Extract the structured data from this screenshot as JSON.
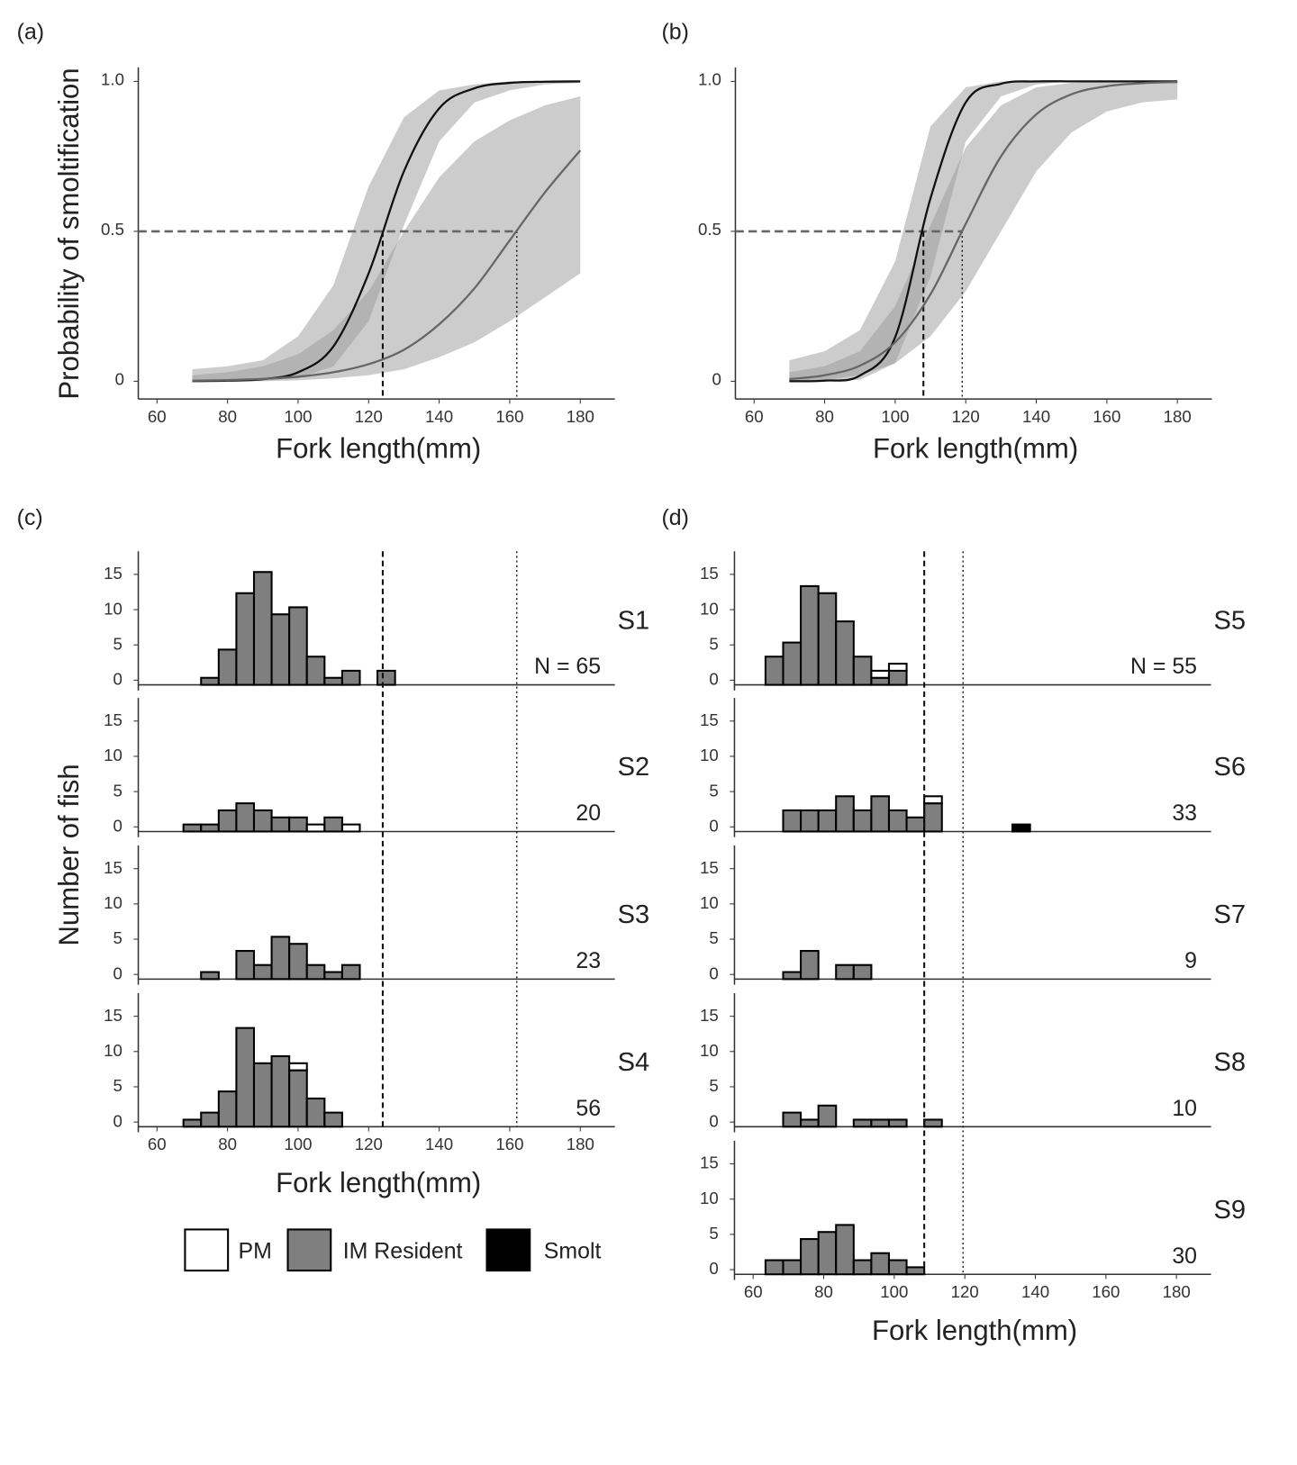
{
  "colors": {
    "im_resident": "#7f7f7f",
    "pm": "#ffffff",
    "smolt": "#000000",
    "band": "#9a9a9a",
    "fit_black": "#111111",
    "fit_gray": "#666666"
  },
  "chart_data": [
    {
      "type": "line",
      "panel_label": "(a)",
      "xlabel": "Fork length(mm)",
      "ylabel": "Probability of smoltification",
      "xlim": [
        55,
        190
      ],
      "ylim": [
        0,
        1
      ],
      "x_ticks": [
        "60",
        "80",
        "100",
        "120",
        "140",
        "160",
        "180"
      ],
      "y_ticks": [
        "0",
        "0.5",
        "1.0"
      ],
      "threshold_p": 0.5,
      "series": [
        {
          "style": "black",
          "x50": 124,
          "x": [
            70,
            80,
            90,
            100,
            110,
            120,
            130,
            140,
            150,
            160,
            170,
            180
          ],
          "fit": [
            0.0004,
            0.002,
            0.007,
            0.03,
            0.116,
            0.36,
            0.7,
            0.91,
            0.977,
            0.995,
            0.999,
            1.0
          ],
          "upper": [
            0.04,
            0.05,
            0.07,
            0.15,
            0.32,
            0.65,
            0.88,
            0.97,
            0.99,
            1.0,
            1.0,
            1.0
          ],
          "lower": [
            0,
            0,
            0.002,
            0.01,
            0.05,
            0.2,
            0.52,
            0.8,
            0.93,
            0.97,
            0.99,
            0.995
          ]
        },
        {
          "style": "gray",
          "x50": 162,
          "x": [
            70,
            80,
            90,
            100,
            110,
            120,
            130,
            140,
            150,
            160,
            170,
            180
          ],
          "fit": [
            0.002,
            0.004,
            0.008,
            0.015,
            0.03,
            0.057,
            0.105,
            0.19,
            0.31,
            0.47,
            0.63,
            0.77
          ],
          "upper": [
            0.02,
            0.03,
            0.05,
            0.09,
            0.17,
            0.3,
            0.5,
            0.68,
            0.8,
            0.87,
            0.92,
            0.95
          ],
          "lower": [
            0,
            0,
            0,
            0.003,
            0.01,
            0.02,
            0.04,
            0.08,
            0.13,
            0.2,
            0.28,
            0.36
          ]
        }
      ]
    },
    {
      "type": "line",
      "panel_label": "(b)",
      "xlabel": "Fork length(mm)",
      "xlim": [
        55,
        190
      ],
      "ylim": [
        0,
        1
      ],
      "x_ticks": [
        "60",
        "80",
        "100",
        "120",
        "140",
        "160",
        "180"
      ],
      "y_ticks": [
        "0",
        "0.5",
        "1.0"
      ],
      "threshold_p": 0.5,
      "series": [
        {
          "style": "black",
          "x50": 108,
          "x": [
            70,
            80,
            90,
            100,
            110,
            120,
            130,
            140,
            150,
            160,
            170,
            180
          ],
          "fit": [
            0.0002,
            0.002,
            0.019,
            0.147,
            0.61,
            0.93,
            0.992,
            1,
            1,
            1,
            1,
            1
          ],
          "upper": [
            0.07,
            0.1,
            0.17,
            0.4,
            0.85,
            0.98,
            1,
            1,
            1,
            1,
            1,
            1
          ],
          "lower": [
            0,
            0,
            0.005,
            0.06,
            0.35,
            0.8,
            0.95,
            0.99,
            1,
            1,
            1,
            1
          ]
        },
        {
          "style": "gray",
          "x50": 119,
          "x": [
            70,
            80,
            90,
            100,
            110,
            120,
            130,
            140,
            150,
            160,
            170,
            180
          ],
          "fit": [
            0.007,
            0.02,
            0.052,
            0.13,
            0.29,
            0.525,
            0.75,
            0.89,
            0.957,
            0.984,
            0.994,
            0.998
          ],
          "upper": [
            0.03,
            0.05,
            0.1,
            0.25,
            0.52,
            0.78,
            0.92,
            0.98,
            0.995,
            1,
            1,
            1
          ],
          "lower": [
            0,
            0.005,
            0.02,
            0.06,
            0.15,
            0.3,
            0.5,
            0.7,
            0.83,
            0.9,
            0.93,
            0.94
          ]
        }
      ]
    },
    {
      "type": "bar",
      "panel_label": "(c)",
      "xlabel": "Fork length(mm)",
      "ylabel": "Number of fish",
      "xlim": [
        55,
        190
      ],
      "ylim": [
        0,
        18
      ],
      "x_ticks": [
        "60",
        "80",
        "100",
        "120",
        "140",
        "160",
        "180"
      ],
      "y_ticks": [
        "0",
        "5",
        "10",
        "15"
      ],
      "bin_width": 5,
      "threshold_lines": [
        {
          "x": 124,
          "style": "dashed"
        },
        {
          "x": 162,
          "style": "dotted"
        }
      ],
      "bin_fields": [
        "start",
        "im_resident",
        "pm",
        "smolt"
      ],
      "subplots": [
        {
          "label": "S1",
          "n_label": "N = 65",
          "bins": [
            [
              72.5,
              1,
              0,
              0
            ],
            [
              77.5,
              5,
              0,
              0
            ],
            [
              82.5,
              13,
              0,
              0
            ],
            [
              87.5,
              16,
              0,
              0
            ],
            [
              92.5,
              10,
              0,
              0
            ],
            [
              97.5,
              11,
              0,
              0
            ],
            [
              102.5,
              4,
              0,
              0
            ],
            [
              107.5,
              1,
              0,
              0
            ],
            [
              112.5,
              2,
              0,
              0
            ],
            [
              122.5,
              2,
              0,
              0
            ]
          ]
        },
        {
          "label": "S2",
          "n_label": "20",
          "bins": [
            [
              67.5,
              1,
              0,
              0
            ],
            [
              72.5,
              1,
              0,
              0
            ],
            [
              77.5,
              3,
              0,
              0
            ],
            [
              82.5,
              4,
              0,
              0
            ],
            [
              87.5,
              3,
              0,
              0
            ],
            [
              92.5,
              2,
              0,
              0
            ],
            [
              97.5,
              2,
              0,
              0
            ],
            [
              102.5,
              0,
              1,
              0
            ],
            [
              107.5,
              2,
              0,
              0
            ],
            [
              112.5,
              0,
              1,
              0
            ]
          ]
        },
        {
          "label": "S3",
          "n_label": "23",
          "bins": [
            [
              72.5,
              1,
              0,
              0
            ],
            [
              82.5,
              4,
              0,
              0
            ],
            [
              87.5,
              2,
              0,
              0
            ],
            [
              92.5,
              6,
              0,
              0
            ],
            [
              97.5,
              5,
              0,
              0
            ],
            [
              102.5,
              2,
              0,
              0
            ],
            [
              107.5,
              1,
              0,
              0
            ],
            [
              112.5,
              2,
              0,
              0
            ]
          ]
        },
        {
          "label": "S4",
          "n_label": "56",
          "bins": [
            [
              67.5,
              1,
              0,
              0
            ],
            [
              72.5,
              2,
              0,
              0
            ],
            [
              77.5,
              5,
              0,
              0
            ],
            [
              82.5,
              14,
              0,
              0
            ],
            [
              87.5,
              9,
              0,
              0
            ],
            [
              92.5,
              10,
              0,
              0
            ],
            [
              97.5,
              8,
              1,
              0
            ],
            [
              102.5,
              4,
              0,
              0
            ],
            [
              107.5,
              2,
              0,
              0
            ]
          ]
        }
      ],
      "legend": [
        "PM",
        "IM Resident",
        "Smolt"
      ]
    },
    {
      "type": "bar",
      "panel_label": "(d)",
      "xlabel": "Fork length(mm)",
      "xlim": [
        55,
        190
      ],
      "ylim": [
        0,
        18
      ],
      "x_ticks": [
        "60",
        "80",
        "100",
        "120",
        "140",
        "160",
        "180"
      ],
      "y_ticks": [
        "0",
        "5",
        "10",
        "15"
      ],
      "bin_width": 5,
      "threshold_lines": [
        {
          "x": 108.5,
          "style": "dashed"
        },
        {
          "x": 119.5,
          "style": "dotted"
        }
      ],
      "bin_fields": [
        "start",
        "im_resident",
        "pm",
        "smolt"
      ],
      "subplots": [
        {
          "label": "S5",
          "n_label": "N = 55",
          "bins": [
            [
              63.5,
              4,
              0,
              0
            ],
            [
              68.5,
              6,
              0,
              0
            ],
            [
              73.5,
              14,
              0,
              0
            ],
            [
              78.5,
              13,
              0,
              0
            ],
            [
              83.5,
              9,
              0,
              0
            ],
            [
              88.5,
              4,
              0,
              0
            ],
            [
              93.5,
              1,
              1,
              0
            ],
            [
              98.5,
              2,
              1,
              0
            ]
          ]
        },
        {
          "label": "S6",
          "n_label": "33",
          "bins": [
            [
              68.5,
              3,
              0,
              0
            ],
            [
              73.5,
              3,
              0,
              0
            ],
            [
              78.5,
              3,
              0,
              0
            ],
            [
              83.5,
              5,
              0,
              0
            ],
            [
              88.5,
              3,
              0,
              0
            ],
            [
              93.5,
              5,
              0,
              0
            ],
            [
              98.5,
              3,
              0,
              0
            ],
            [
              103.5,
              2,
              0,
              0
            ],
            [
              108.5,
              4,
              1,
              0
            ],
            [
              133.5,
              0,
              0,
              1
            ]
          ]
        },
        {
          "label": "S7",
          "n_label": "9",
          "bins": [
            [
              68.5,
              1,
              0,
              0
            ],
            [
              73.5,
              4,
              0,
              0
            ],
            [
              83.5,
              2,
              0,
              0
            ],
            [
              88.5,
              2,
              0,
              0
            ]
          ]
        },
        {
          "label": "S8",
          "n_label": "10",
          "bins": [
            [
              68.5,
              2,
              0,
              0
            ],
            [
              73.5,
              1,
              0,
              0
            ],
            [
              78.5,
              3,
              0,
              0
            ],
            [
              88.5,
              1,
              0,
              0
            ],
            [
              93.5,
              1,
              0,
              0
            ],
            [
              98.5,
              1,
              0,
              0
            ],
            [
              108.5,
              1,
              0,
              0
            ]
          ]
        },
        {
          "label": "S9",
          "n_label": "30",
          "bins": [
            [
              63.5,
              2,
              0,
              0
            ],
            [
              68.5,
              2,
              0,
              0
            ],
            [
              73.5,
              5,
              0,
              0
            ],
            [
              78.5,
              6,
              0,
              0
            ],
            [
              83.5,
              7,
              0,
              0
            ],
            [
              88.5,
              2,
              0,
              0
            ],
            [
              93.5,
              3,
              0,
              0
            ],
            [
              98.5,
              2,
              0,
              0
            ],
            [
              103.5,
              1,
              0,
              0
            ]
          ]
        }
      ]
    }
  ]
}
